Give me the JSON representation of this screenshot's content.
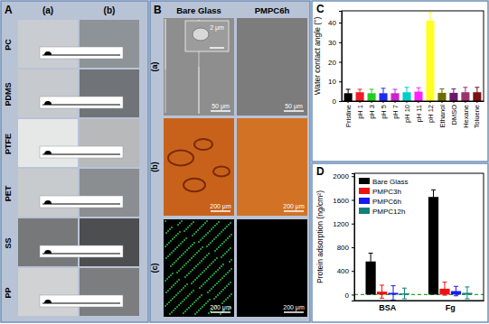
{
  "panel_a": {
    "panel_label": "A",
    "columns": [
      "(a)",
      "(b)"
    ],
    "rows": [
      "PC",
      "PDMS",
      "PTFE",
      "PET",
      "SS",
      "PP"
    ]
  },
  "panel_b": {
    "panel_label": "B",
    "columns": [
      "Bare Glass",
      "PMPC6h"
    ],
    "rows": [
      "(a)",
      "(b)",
      "(c)"
    ],
    "inset_scale": "2 μm",
    "scale_bars": [
      [
        "50 μm",
        "50 μm"
      ],
      [
        "200 μm",
        "200 μm"
      ],
      [
        "200 μm",
        "200 μm"
      ]
    ]
  },
  "chart_data": [
    {
      "type": "bar",
      "panel_label": "C",
      "y_label": "Water contact angle (°)",
      "categories": [
        "Pristine",
        "pH 1",
        "pH 3",
        "pH 5",
        "pH 7",
        "pH 10",
        "pH 11",
        "pH 12",
        "Ethanol",
        "DMSO",
        "Hexane",
        "Toluene"
      ],
      "values": [
        4,
        4.5,
        4,
        4,
        4,
        4.5,
        4.8,
        41,
        4.2,
        4.2,
        4.5,
        4.5
      ],
      "errors": [
        2,
        1.5,
        2,
        2.5,
        2,
        2.5,
        2,
        4,
        2,
        2,
        2.5,
        2.5
      ],
      "colors": [
        "#000000",
        "#ee1c24",
        "#22cc22",
        "#1e2cf0",
        "#cc22cc",
        "#00cccc",
        "#ff22ff",
        "#ffff22",
        "#6b6b00",
        "#6a1a6a",
        "#99336a",
        "#7a1010"
      ],
      "ylim": [
        0,
        46
      ],
      "yticks": [
        0,
        10,
        20,
        30,
        40
      ]
    },
    {
      "type": "bar",
      "panel_label": "D",
      "y_label": "Protein adsorption (ng/cm²)",
      "categories": [
        "BSA",
        "Fg"
      ],
      "series": [
        {
          "name": "Bare Glass",
          "color": "#000000",
          "values": [
            560,
            1650
          ],
          "errors": [
            140,
            120
          ]
        },
        {
          "name": "PMPC3h",
          "color": "#ee1111",
          "values": [
            50,
            100
          ],
          "errors": [
            110,
            110
          ]
        },
        {
          "name": "PMPC6h",
          "color": "#1a1aee",
          "values": [
            30,
            60
          ],
          "errors": [
            120,
            80
          ]
        },
        {
          "name": "PMPC12h",
          "color": "#11807a",
          "values": [
            20,
            30
          ],
          "errors": [
            90,
            100
          ]
        }
      ],
      "baseline": 0,
      "ylim": [
        -100,
        2050
      ],
      "yticks": [
        0,
        400,
        800,
        1200,
        1600,
        2000
      ],
      "legend": "upper left"
    }
  ]
}
